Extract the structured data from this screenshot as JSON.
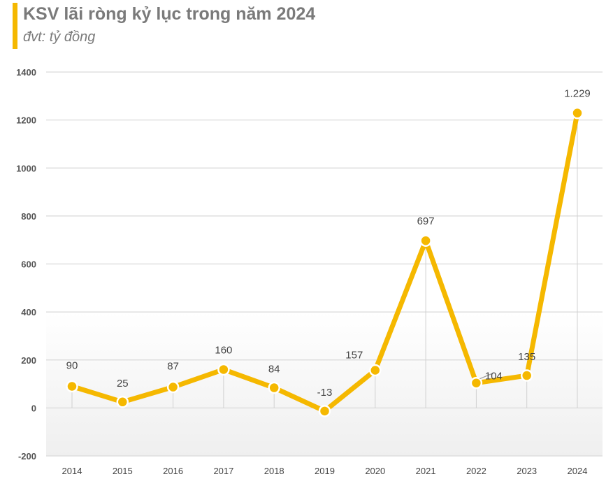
{
  "header": {
    "title": "KSV lãi ròng kỷ lục trong năm 2024",
    "subtitle": "đvt: tỷ đồng"
  },
  "colors": {
    "accent": "#f5b800",
    "grid": "#d9d9d9",
    "background_gradient_bottom": "#efefef"
  },
  "chart_data": {
    "type": "line",
    "title": "KSV lãi ròng kỷ lục trong năm 2024",
    "subtitle": "đvt: tỷ đồng",
    "xlabel": "",
    "ylabel": "",
    "categories": [
      "2014",
      "2015",
      "2016",
      "2017",
      "2018",
      "2019",
      "2020",
      "2021",
      "2022",
      "2023",
      "2024"
    ],
    "series": [
      {
        "values": [
          90,
          25,
          87,
          160,
          84,
          -13,
          157,
          697,
          104,
          135,
          1229
        ],
        "data_labels": [
          "90",
          "25",
          "87",
          "160",
          "84",
          "-13",
          "157",
          "697",
          "104",
          "135",
          "1.229"
        ]
      }
    ],
    "ylim": [
      -200,
      1400
    ],
    "yticks": [
      -200,
      0,
      200,
      400,
      600,
      800,
      1000,
      1200,
      1400
    ],
    "grid": true,
    "legend": "none"
  }
}
